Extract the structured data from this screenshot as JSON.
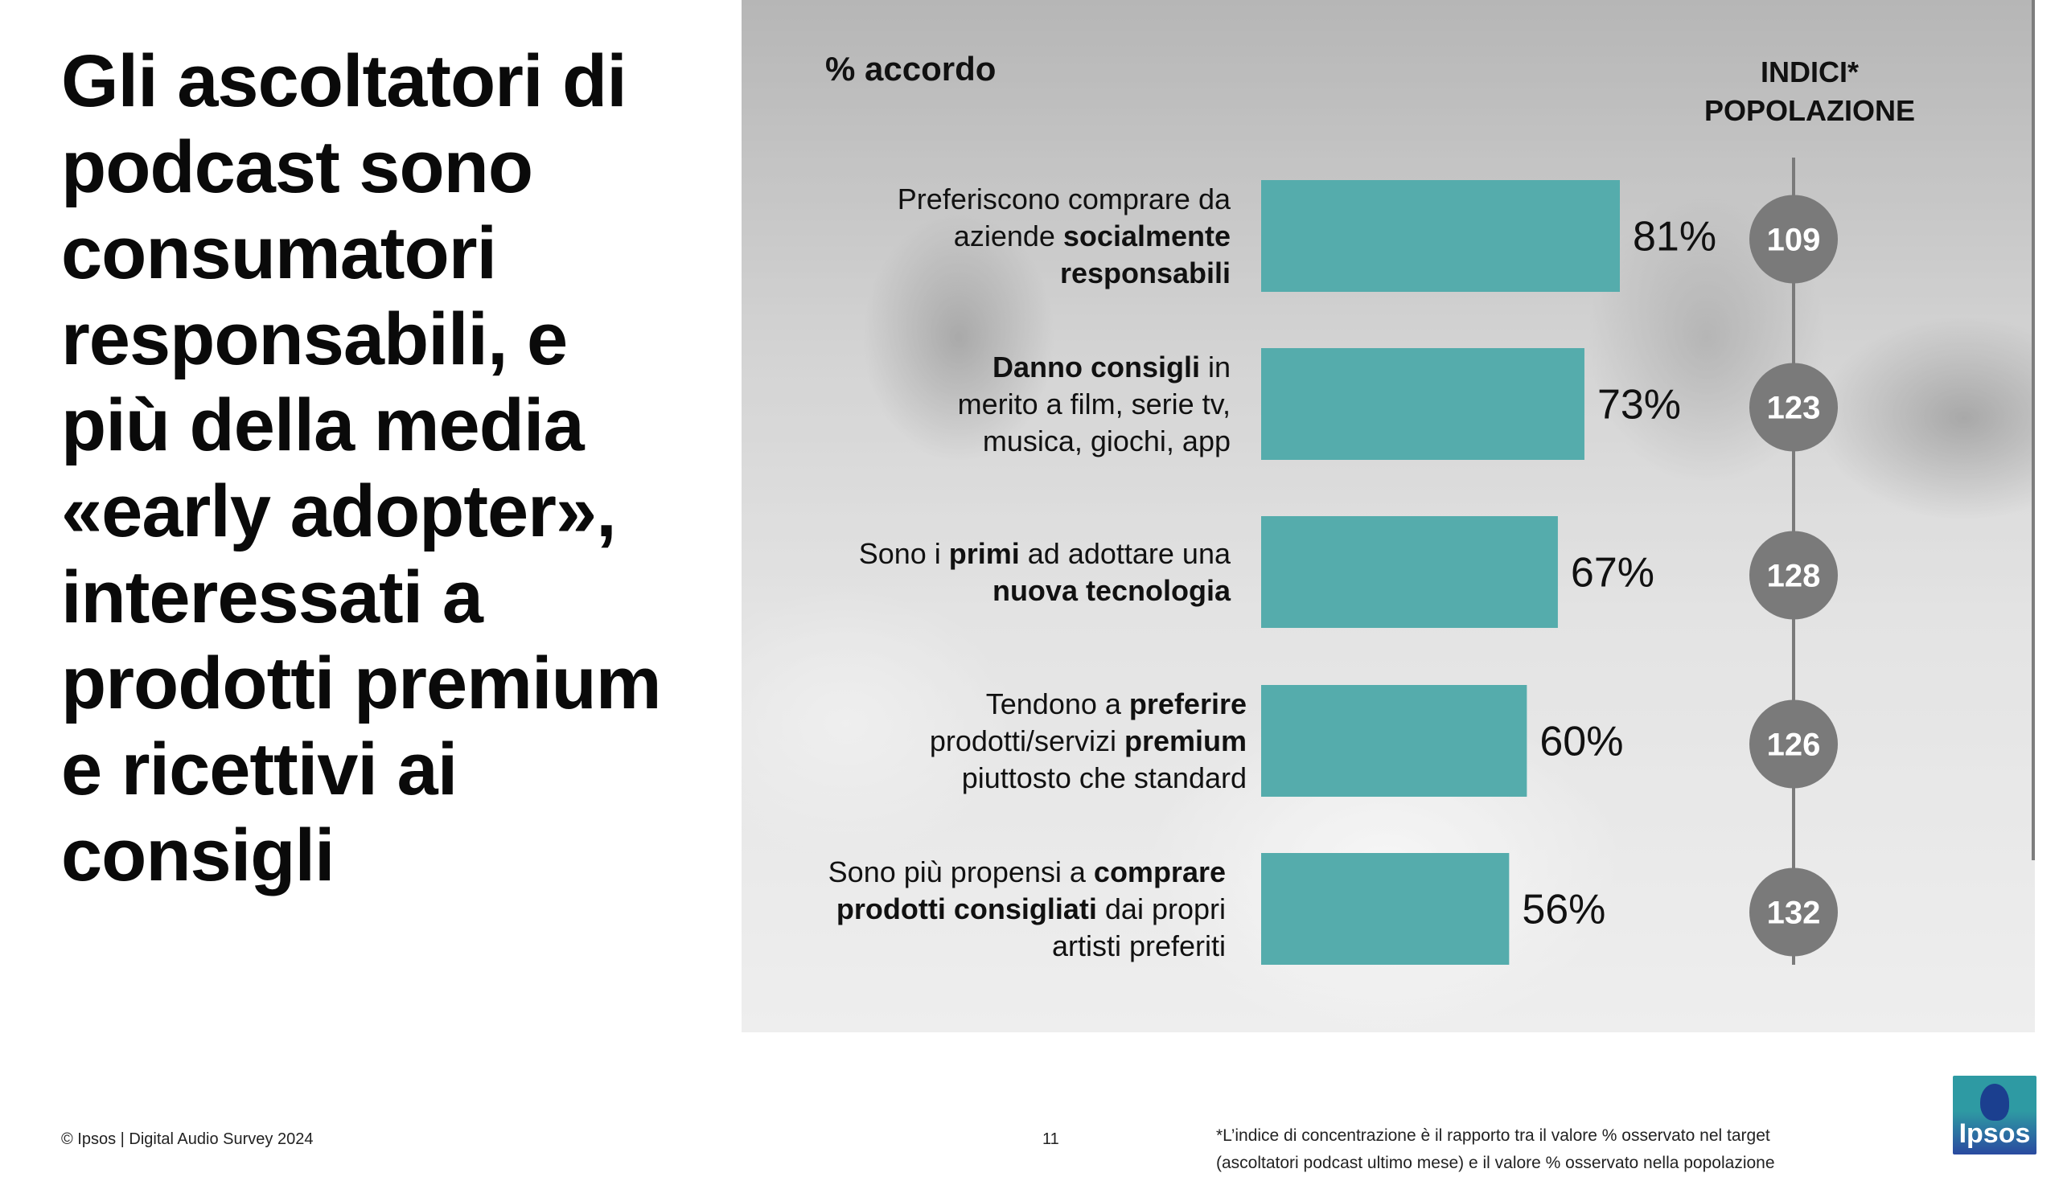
{
  "headline": "Gli ascoltatori di podcast sono consumatori responsabili, e più della media «early adopter», interessati a prodotti premium e ricettivi ai consigli",
  "chart_data": {
    "type": "bar",
    "orientation": "horizontal",
    "caption": "% accordo",
    "index_header": [
      "INDICI*",
      "POPOLAZIONE"
    ],
    "categories": [
      {
        "parts": [
          {
            "t": "Preferiscono comprare da",
            "b": false
          },
          {
            "br": true
          },
          {
            "t": "aziende ",
            "b": false
          },
          {
            "t": "socialmente",
            "b": true
          },
          {
            "br": true
          },
          {
            "t": "responsabili",
            "b": true
          }
        ]
      },
      {
        "parts": [
          {
            "t": "Danno consigli",
            "b": true
          },
          {
            "t": " in",
            "b": false
          },
          {
            "br": true
          },
          {
            "t": "merito a film, serie tv,",
            "b": false
          },
          {
            "br": true
          },
          {
            "t": "musica, giochi, app",
            "b": false
          }
        ]
      },
      {
        "parts": [
          {
            "t": "Sono i ",
            "b": false
          },
          {
            "t": "primi",
            "b": true
          },
          {
            "t": " ad adottare una",
            "b": false
          },
          {
            "br": true
          },
          {
            "t": "nuova tecnologia",
            "b": true
          }
        ]
      },
      {
        "parts": [
          {
            "t": "Tendono a ",
            "b": false
          },
          {
            "t": "preferire",
            "b": true
          },
          {
            "br": true
          },
          {
            "t": "prodotti/servizi ",
            "b": false
          },
          {
            "t": "premium",
            "b": true
          },
          {
            "br": true
          },
          {
            "t": "piuttosto che standard",
            "b": false
          }
        ]
      },
      {
        "parts": [
          {
            "t": "Sono più propensi a ",
            "b": false
          },
          {
            "t": "comprare",
            "b": true
          },
          {
            "br": true
          },
          {
            "t": "prodotti consigliati",
            "b": true
          },
          {
            "t": " dai propri",
            "b": false
          },
          {
            "br": true
          },
          {
            "t": "artisti preferiti",
            "b": false
          }
        ]
      }
    ],
    "values": [
      81,
      73,
      67,
      60,
      56
    ],
    "value_labels": [
      "81%",
      "73%",
      "67%",
      "60%",
      "56%"
    ],
    "index_values": [
      109,
      123,
      128,
      126,
      132
    ],
    "xlim": [
      0,
      100
    ],
    "bar_color": "#55acac",
    "index_circle_color": "#7a7a7a",
    "legend": "none",
    "grid": false
  },
  "footer": {
    "copyright": "© Ipsos | Digital Audio Survey 2024",
    "page_number": "11",
    "note": [
      "*L’indice di concentrazione è il rapporto tra il valore % osservato nel target",
      "(ascoltatori podcast ultimo mese) e il valore % osservato nella popolazione"
    ]
  },
  "logo": {
    "text": "Ipsos"
  }
}
